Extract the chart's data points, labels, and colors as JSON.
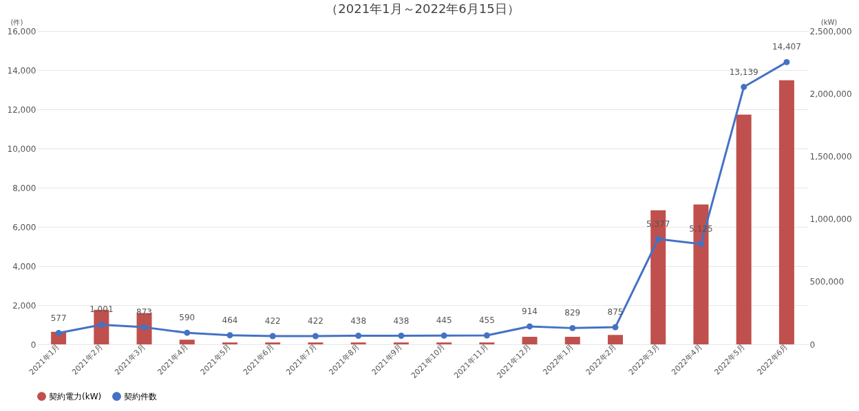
{
  "chart_data": {
    "type": "bar",
    "title": "（2021年1月～2022年6月15日）",
    "ylabel": "(件)",
    "y2label": "(kW)",
    "categories": [
      "2021年1月",
      "2021年2月",
      "2021年3月",
      "2021年4月",
      "2021年5月",
      "2021年6月",
      "2021年7月",
      "2021年8月",
      "2021年9月",
      "2021年10月",
      "2021年11月",
      "2021年12月",
      "2022年1月",
      "2022年2月",
      "2022年3月",
      "2022年4月",
      "2022年5月",
      "2022年6月"
    ],
    "series": [
      {
        "name": "契約電力(kW)",
        "axis": "y2",
        "color": "#c0504d",
        "values": [
          100000,
          275000,
          250000,
          37000,
          15000,
          15000,
          15000,
          15000,
          15000,
          15000,
          15000,
          60000,
          60000,
          75000,
          1069000,
          1116000,
          1833000,
          2107000
        ]
      },
      {
        "name": "契約件数",
        "type": "line",
        "color": "#4472c4",
        "marker": "circle",
        "values": [
          577,
          1001,
          873,
          590,
          464,
          422,
          422,
          438,
          438,
          445,
          455,
          914,
          829,
          875,
          5377,
          5125,
          13139,
          14407
        ],
        "value_labels": [
          "577",
          "1,001",
          "873",
          "590",
          "464",
          "422",
          "422",
          "438",
          "438",
          "445",
          "455",
          "914",
          "829",
          "875",
          "5,377",
          "5,125",
          "13,139",
          "14,407"
        ]
      }
    ],
    "ylim": [
      0,
      16000
    ],
    "yticks": [
      0,
      {
        "value": 2000,
        "label": "2,000"
      },
      {
        "value": 4000,
        "label": "4,000"
      },
      {
        "value": 6000,
        "label": "6,000"
      },
      {
        "value": 8000,
        "label": "8,000"
      },
      {
        "value": 10000,
        "label": "10,000"
      },
      {
        "value": 12000,
        "label": "12,000"
      },
      {
        "value": 14000,
        "label": "14,000"
      },
      {
        "value": 16000,
        "label": "16,000"
      }
    ],
    "y2lim": [
      0,
      2500000
    ],
    "y2ticks": [
      0,
      {
        "value": 500000,
        "label": "500,000"
      },
      {
        "value": 1000000,
        "label": "1,000,000"
      },
      {
        "value": 1500000,
        "label": "1,500,000"
      },
      {
        "value": 2000000,
        "label": "2,000,000"
      },
      {
        "value": 2500000,
        "label": "2,500,000"
      }
    ],
    "grid": "y",
    "legend": "bottom"
  }
}
